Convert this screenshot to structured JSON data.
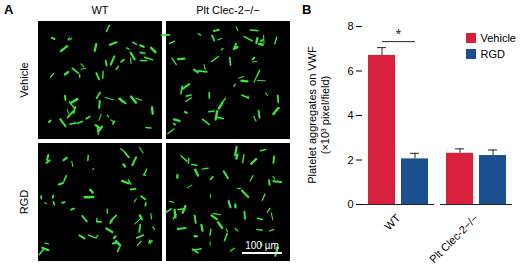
{
  "image_panel": {
    "label": "A",
    "columns": [
      "WT",
      "Plt Clec-2−/−"
    ],
    "rows": [
      "Vehicle",
      "RGD"
    ],
    "scale_bar": "100 µm"
  },
  "chart_data": {
    "type": "bar",
    "panel_label": "B",
    "ylabel": [
      "Platelet aggregates on VWF",
      "(×10³ pixel/field)"
    ],
    "categories": [
      "WT",
      "Plt Clec-2−/−"
    ],
    "series": [
      {
        "name": "Vehicle",
        "color": "#d7213c",
        "values": [
          6.7,
          2.3
        ],
        "errors": [
          0.35,
          0.2
        ]
      },
      {
        "name": "RGD",
        "color": "#1c4f8f",
        "values": [
          2.05,
          2.2
        ],
        "errors": [
          0.25,
          0.25
        ]
      }
    ],
    "ylim": [
      0,
      8
    ],
    "yticks": [
      0,
      2,
      4,
      6,
      8
    ],
    "legend": "top-right",
    "annotations": [
      {
        "text": "*",
        "category": "WT",
        "between": [
          "Vehicle",
          "RGD"
        ]
      }
    ]
  }
}
